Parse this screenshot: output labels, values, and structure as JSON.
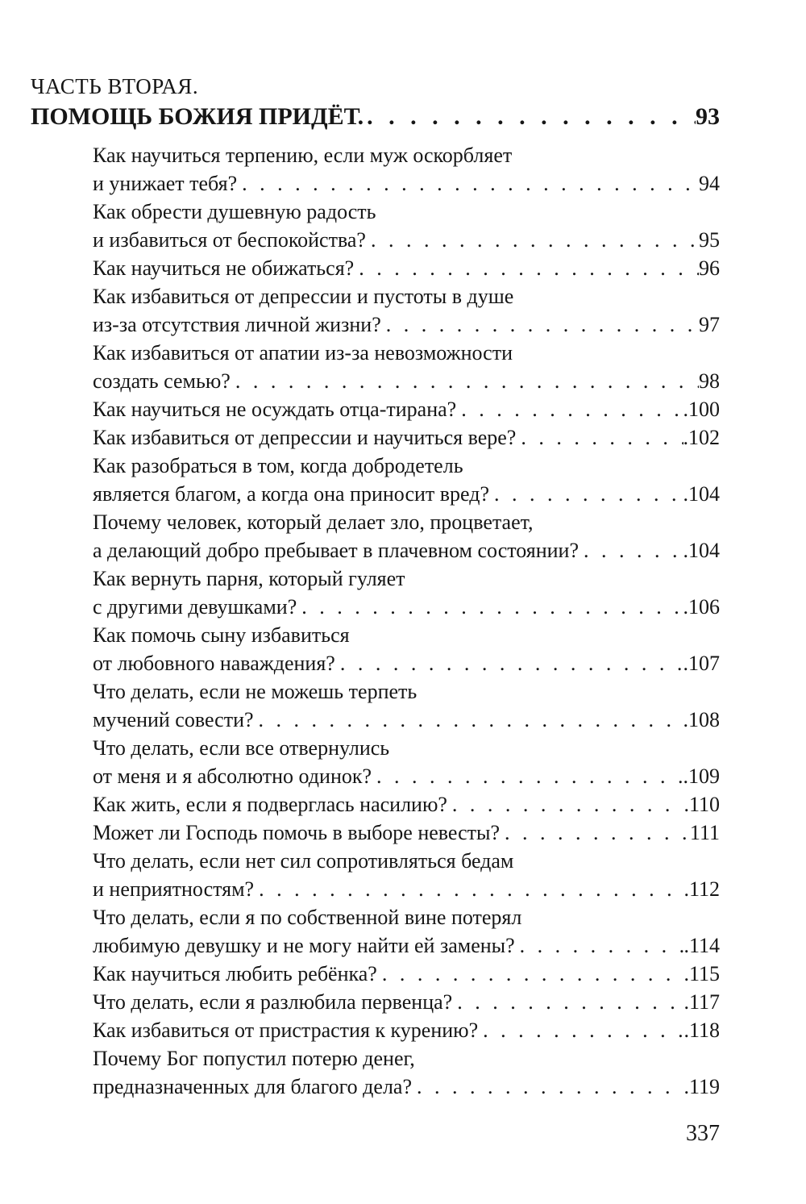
{
  "header": {
    "part": "ЧАСТЬ ВТОРАЯ.",
    "title": "ПОМОЩЬ БОЖИЯ ПРИДЁТ.",
    "page": "93"
  },
  "leader_dot": ". ",
  "toc": {
    "entries": [
      {
        "lines": [
          "Как научиться терпению, если муж оскорбляет",
          "и унижает тебя?"
        ],
        "page": "94"
      },
      {
        "lines": [
          "Как обрести душевную радость",
          "и избавиться от беспокойства?"
        ],
        "page": "95"
      },
      {
        "lines": [
          "Как научиться не обижаться?"
        ],
        "page": "96"
      },
      {
        "lines": [
          "Как избавиться от депрессии и пустоты в душе",
          "из-за отсутствия личной жизни?"
        ],
        "page": "97"
      },
      {
        "lines": [
          "Как избавиться от апатии из-за невозможности",
          "создать семью?"
        ],
        "page": "98"
      },
      {
        "lines": [
          "Как научиться не осуждать отца-тирана?"
        ],
        "page": ".100"
      },
      {
        "lines": [
          "Как избавиться от депрессии и научиться вере?"
        ],
        "page": ".102"
      },
      {
        "lines": [
          "Как разобраться в том, когда добродетель",
          "является благом, а когда она приносит вред?"
        ],
        "page": ".104"
      },
      {
        "lines": [
          "Почему человек, который делает зло, процветает,",
          "а делающий добро пребывает в плачевном состоянии?"
        ],
        "page": ".104"
      },
      {
        "lines": [
          "Как вернуть парня, который гуляет",
          "с другими девушками?"
        ],
        "page": ".106"
      },
      {
        "lines": [
          "Как помочь сыну избавиться",
          "от любовного наваждения?"
        ],
        "page": ".107"
      },
      {
        "lines": [
          "Что делать, если не можешь терпеть",
          "мучений совести?"
        ],
        "page": ".108"
      },
      {
        "lines": [
          "Что делать, если все отвернулись",
          "от меня и я абсолютно одинок?"
        ],
        "page": ".109"
      },
      {
        "lines": [
          "Как жить, если я подверглась насилию?"
        ],
        "page": ".110"
      },
      {
        "lines": [
          "Может ли Господь помочь в выборе невесты?"
        ],
        "page": "111"
      },
      {
        "lines": [
          "Что делать, если нет сил сопротивляться бедам",
          "и неприятностям?"
        ],
        "page": ".112"
      },
      {
        "lines": [
          "Что делать, если я по собственной вине потерял",
          "любимую девушку и не могу найти ей замены?"
        ],
        "page": ".114"
      },
      {
        "lines": [
          "Как научиться любить ребёнка?"
        ],
        "page": ".115"
      },
      {
        "lines": [
          "Что делать, если я разлюбила первенца?"
        ],
        "page": ".117"
      },
      {
        "lines": [
          "Как избавиться от пристрастия к курению?"
        ],
        "page": ".118"
      },
      {
        "lines": [
          "Почему Бог попустил потерю денег,",
          "предназначенных для благого дела?"
        ],
        "page": ".119"
      }
    ]
  },
  "footer": {
    "folio": "337"
  }
}
